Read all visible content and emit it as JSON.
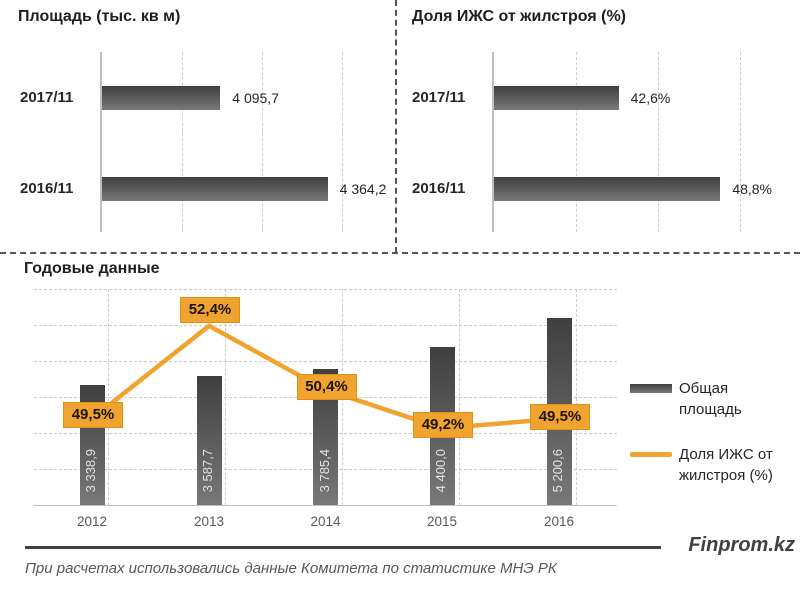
{
  "chart_data": [
    {
      "type": "bar",
      "orientation": "horizontal",
      "title": "Площадь (тыс. кв м)",
      "categories": [
        "2017/11",
        "2016/11"
      ],
      "values": [
        4095.7,
        4364.2
      ],
      "value_labels": [
        "4 095,7",
        "4 364,2"
      ],
      "xlabel": "",
      "ylabel": "",
      "xlim": [
        3800,
        4530
      ],
      "gridline_values": [
        4000,
        4200,
        4400
      ],
      "grid": "vertical-dashed",
      "legend_position": "none"
    },
    {
      "type": "bar",
      "orientation": "horizontal",
      "title": "Доля ИЖС от жилстроя (%)",
      "categories": [
        "2017/11",
        "2016/11"
      ],
      "values": [
        42.6,
        48.8
      ],
      "value_labels": [
        "42,6%",
        "48,8%"
      ],
      "xlabel": "",
      "ylabel": "",
      "xlim": [
        35,
        53.2
      ],
      "gridline_values": [
        40,
        45,
        50
      ],
      "grid": "vertical-dashed",
      "legend_position": "none"
    },
    {
      "type": "combo",
      "title": "Годовые данные",
      "categories": [
        "2012",
        "2013",
        "2014",
        "2015",
        "2016"
      ],
      "series": [
        {
          "name": "Общая площадь",
          "type": "bar",
          "axis": "left",
          "values": [
            3338.9,
            3587.7,
            3785.4,
            4400.0,
            5200.6
          ],
          "labels": [
            "3 338,9",
            "3 587,7",
            "3 785,4",
            "4 400,0",
            "5 200,6"
          ],
          "ylim": [
            0,
            6000
          ]
        },
        {
          "name": "Доля ИЖС от жилстроя (%)",
          "type": "line",
          "axis": "right",
          "values": [
            49.5,
            52.4,
            50.4,
            49.2,
            49.5
          ],
          "labels": [
            "49,5%",
            "52,4%",
            "50,4%",
            "49,2%",
            "49,5%"
          ],
          "ylim": [
            46.8,
            53.55
          ]
        }
      ],
      "grid": "horizontal-dashed",
      "legend_position": "right"
    }
  ],
  "legend": {
    "bar_label": "Общая площадь",
    "line_label": "Доля ИЖС от жилстроя (%)"
  },
  "footer": {
    "note": "При расчетах использовались данные Комитета по статистике МНЭ РК",
    "brand": "Finprom.kz"
  },
  "colors": {
    "bar_dark": "#3f3f3f",
    "bar_light": "#787878",
    "orange": "#F0A32E",
    "orange_border": "#DD9117",
    "label_text": "#1c1300",
    "grid_light": "#cccccc",
    "axis_line": "#bfbfbf",
    "divider": "#555555",
    "text_dark": "#262626",
    "text_gray": "#595959",
    "inner_label": "#e2e2e2",
    "brand_gray": "#404040"
  }
}
